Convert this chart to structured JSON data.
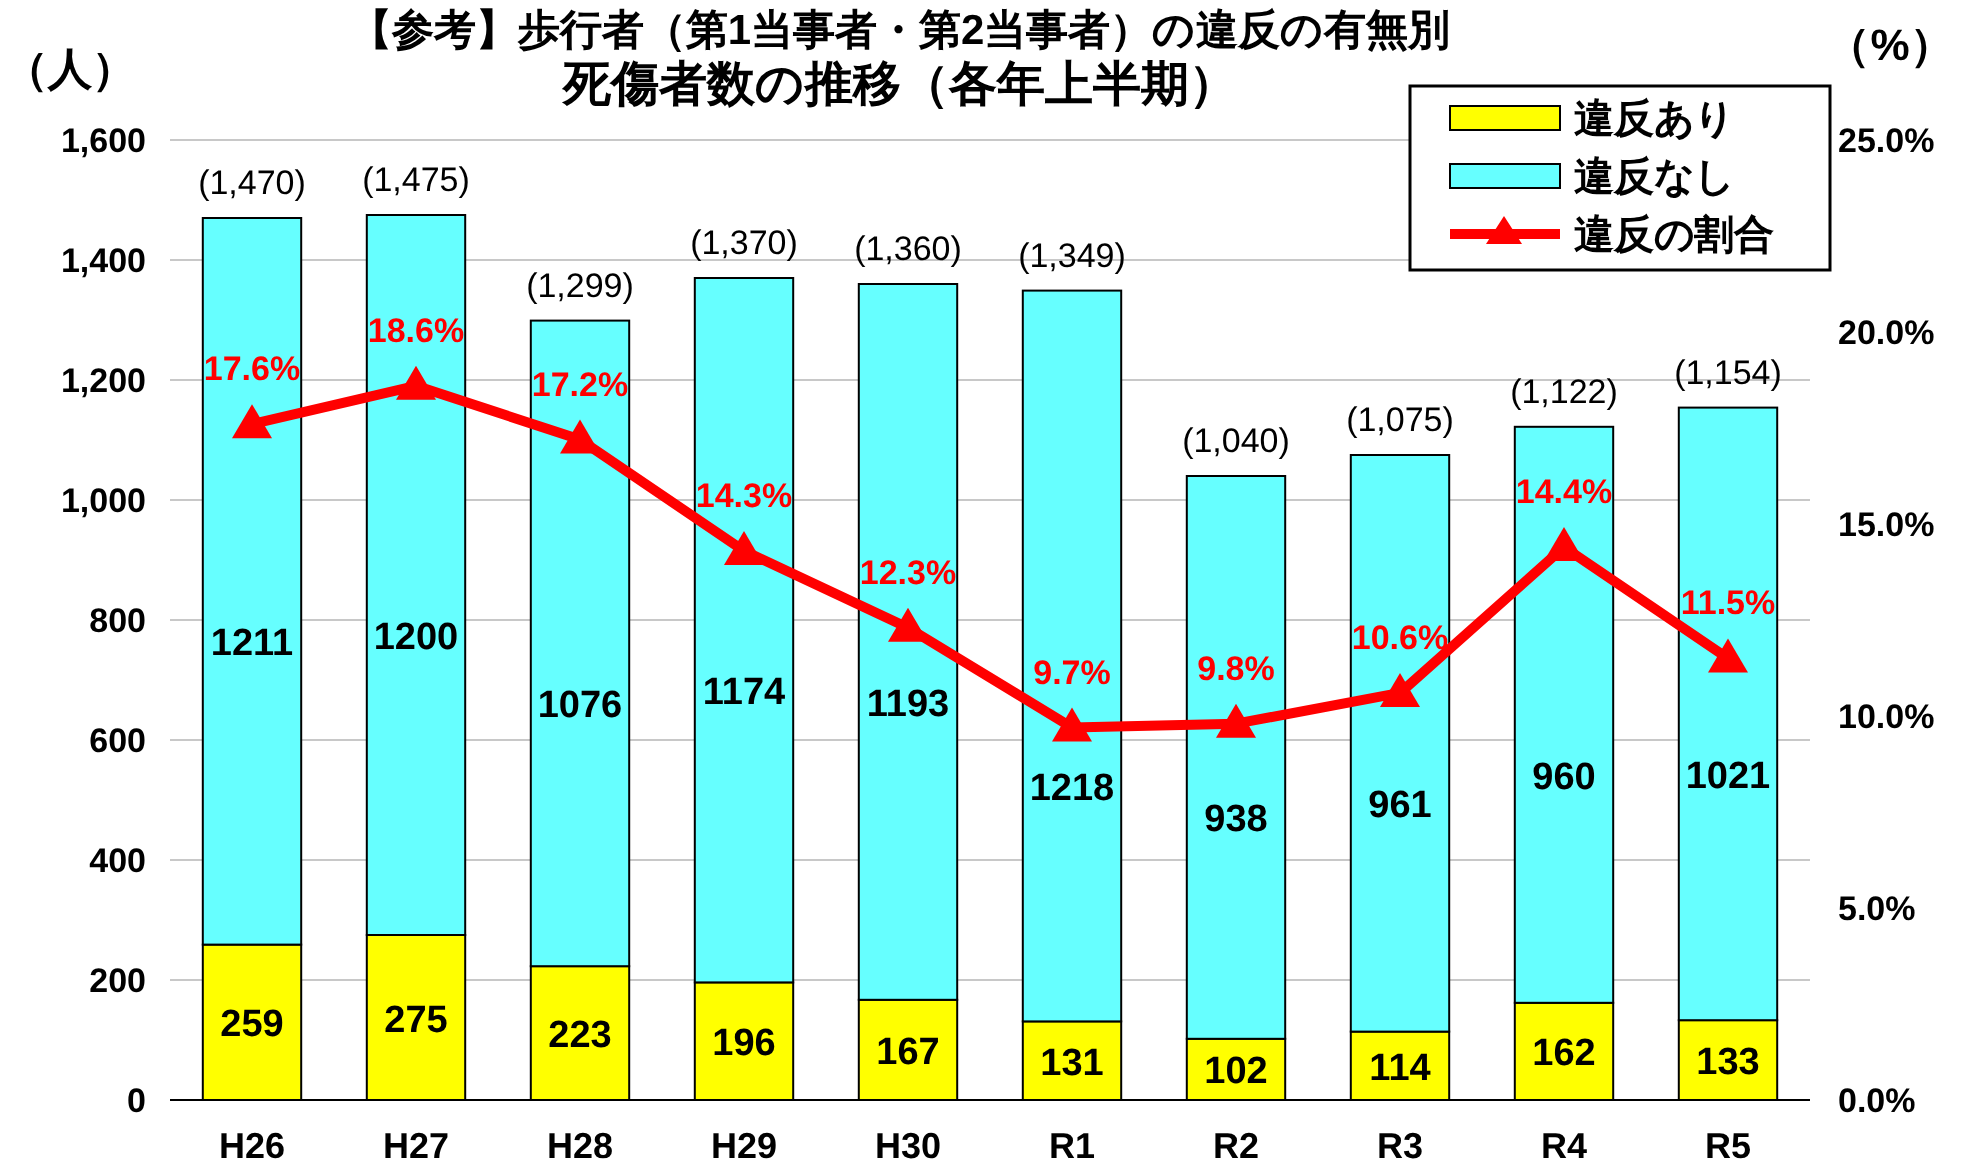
{
  "chart_data": {
    "type": "bar",
    "title": "【参考】歩行者（第1当事者・第2当事者）の違反の有無別",
    "subtitle": "死傷者数の推移（各年上半期）",
    "ylabel": "（人）",
    "y2label": "（%）",
    "categories": [
      "H26",
      "H27",
      "H28",
      "H29",
      "H30",
      "R1",
      "R2",
      "R3",
      "R4",
      "R5"
    ],
    "stacked": true,
    "data_labels": true,
    "grid": "y",
    "legend": "top right",
    "series": [
      {
        "name": "違反あり",
        "color": "#ffff00",
        "values": [
          259,
          275,
          223,
          196,
          167,
          131,
          102,
          114,
          162,
          133
        ]
      },
      {
        "name": "違反なし",
        "color": "#66ffff",
        "values": [
          1211,
          1200,
          1076,
          1174,
          1193,
          1218,
          938,
          961,
          960,
          1021
        ]
      },
      {
        "name": "違反の割合",
        "type": "line",
        "axis": "y2",
        "color": "#ff0000",
        "marker": "triangle",
        "line_style": "solid",
        "values": [
          17.6,
          18.6,
          17.2,
          14.3,
          12.3,
          9.7,
          9.8,
          10.6,
          14.4,
          11.5
        ],
        "value_labels": [
          "17.6%",
          "18.6%",
          "17.2%",
          "14.3%",
          "12.3%",
          "9.7%",
          "9.8%",
          "10.6%",
          "14.4%",
          "11.5%"
        ]
      }
    ],
    "totals": [
      "(1,470)",
      "(1,475)",
      "(1,299)",
      "(1,370)",
      "(1,360)",
      "(1,349)",
      "(1,040)",
      "(1,075)",
      "(1,122)",
      "(1,154)"
    ],
    "ylim": [
      0,
      1600
    ],
    "yticks": [
      0,
      200,
      400,
      600,
      800,
      {
        "value": 1000,
        "label": "1,000"
      },
      {
        "value": 1200,
        "label": "1,200"
      },
      {
        "value": 1400,
        "label": "1,400"
      },
      {
        "value": 1600,
        "label": "1,600"
      }
    ],
    "y2lim": [
      0,
      25
    ],
    "y2ticks": [
      {
        "value": 0,
        "label": "0.0%"
      },
      {
        "value": 5,
        "label": "5.0%"
      },
      {
        "value": 10,
        "label": "10.0%"
      },
      {
        "value": 15,
        "label": "15.0%"
      },
      {
        "value": 20,
        "label": "20.0%"
      },
      {
        "value": 25,
        "label": "25.0%"
      }
    ]
  }
}
